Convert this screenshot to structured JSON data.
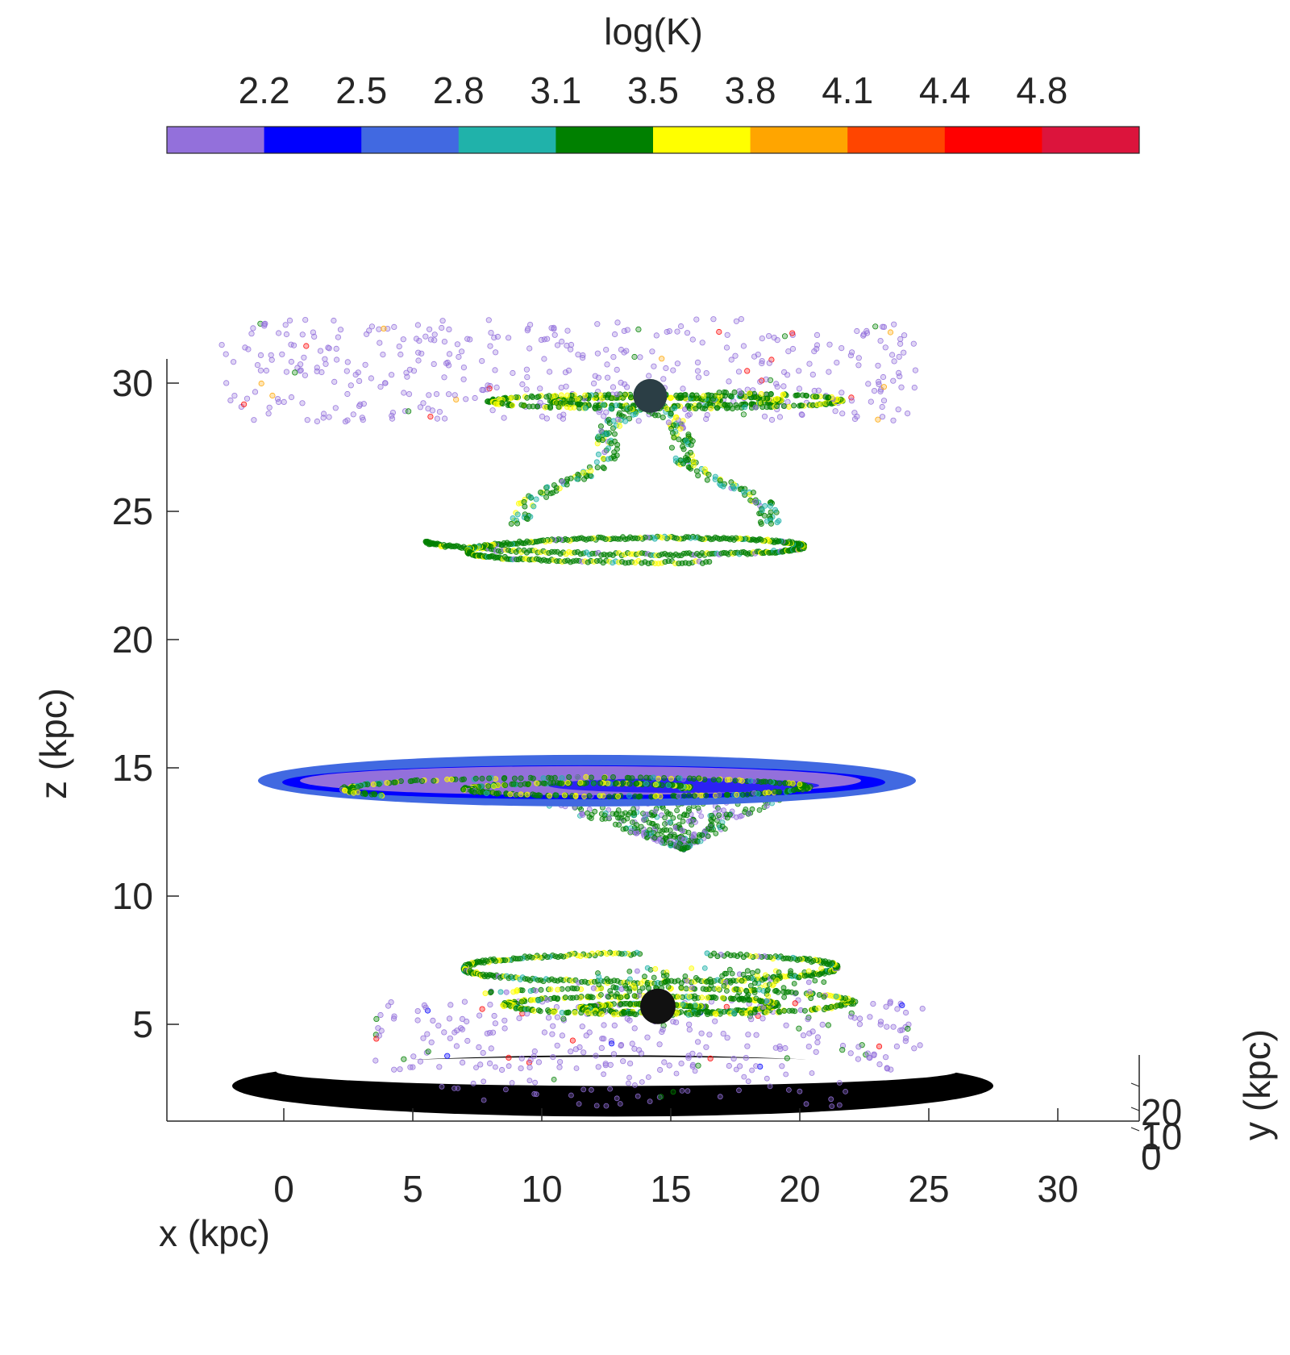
{
  "chart_data": {
    "type": "scatter",
    "view": "3d",
    "title": "",
    "xlabel": "x (kpc)",
    "ylabel": "y (kpc)",
    "zlabel": "z (kpc)",
    "xlim": [
      -4.5,
      33
    ],
    "zlim": [
      1,
      31
    ],
    "x_ticks": [
      "0",
      "5",
      "10",
      "15",
      "20",
      "25",
      "30"
    ],
    "y_ticks": [
      "0",
      "10",
      "20"
    ],
    "z_ticks": [
      "5",
      "10",
      "15",
      "20",
      "25",
      "30"
    ],
    "grid": false,
    "colorbar": {
      "label": "log(K)",
      "location": "top",
      "tick_labels": [
        "2.2",
        "2.5",
        "2.8",
        "3.1",
        "3.5",
        "3.8",
        "4.1",
        "4.4",
        "4.8"
      ],
      "colors": [
        "#9370DB",
        "#0000FF",
        "#4169E1",
        "#20B2AA",
        "#008000",
        "#FFFF00",
        "#FFA500",
        "#FF4500",
        "#FF0000",
        "#DC143C"
      ]
    },
    "snapshots": [
      {
        "name": "",
        "z_center": 29.5,
        "galaxy_x": 14.2,
        "galaxy_z": 29.5,
        "disk_x": [
          6.5,
          22
        ],
        "halo_x": [
          -2.5,
          24.5
        ],
        "halo_z": [
          28.5,
          32.5
        ],
        "spiral_z_range": [
          22.8,
          29
        ]
      },
      {
        "name": "",
        "z_center": 14.5,
        "disk_x": [
          -1,
          24.5
        ],
        "cone_tip_x": 15.5,
        "cone_tip_z": 11.8
      },
      {
        "name": "",
        "z_center": 5.0,
        "galaxy_x": 14.5,
        "galaxy_z": 5.7,
        "disk_x": [
          6,
          23
        ],
        "outer_ring_x": [
          -2,
          27.5
        ],
        "outer_ring_z": 2.6
      }
    ]
  }
}
